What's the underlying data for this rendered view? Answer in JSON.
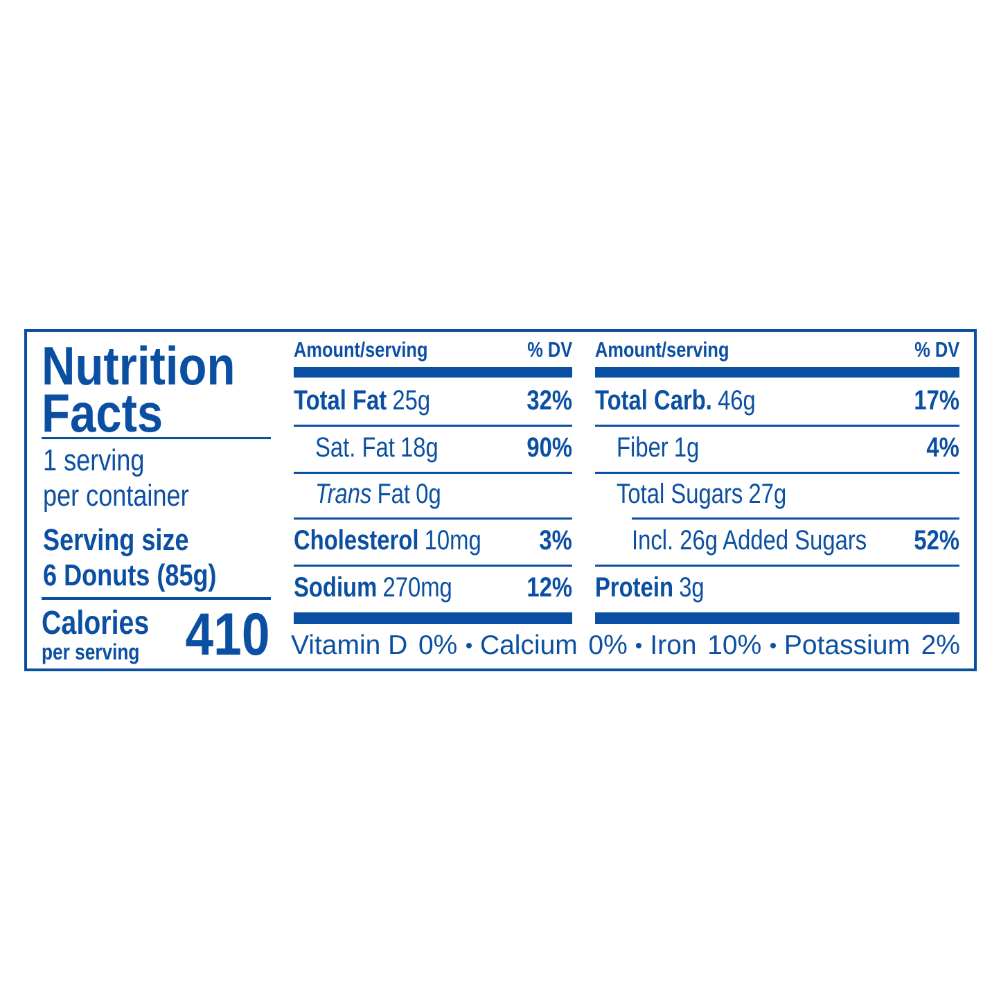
{
  "title": {
    "line1": "Nutrition",
    "line2": "Facts"
  },
  "servings": {
    "line1": "1 serving",
    "line2": "per container"
  },
  "serving_size": {
    "label": "Serving size",
    "value": "6 Donuts (85g)"
  },
  "calories": {
    "label": "Calories",
    "sublabel": "per serving",
    "value": 410
  },
  "columns": [
    {
      "header": {
        "amount": "Amount/serving",
        "dv": "% DV"
      },
      "rows": [
        {
          "name": "Total Fat",
          "amount": "25g",
          "dv": "32%",
          "bold": true,
          "indent": 0
        },
        {
          "name": "Sat. Fat",
          "amount": "18g",
          "dv": "90%",
          "bold": false,
          "indent": 1
        },
        {
          "prefix": "Trans",
          "name": "Fat",
          "amount": "0g",
          "bold": false,
          "indent": 1
        },
        {
          "name": "Cholesterol",
          "amount": "10mg",
          "dv": "3%",
          "bold": true,
          "indent": 0
        },
        {
          "name": "Sodium",
          "amount": "270mg",
          "dv": "12%",
          "bold": true,
          "indent": 0
        }
      ]
    },
    {
      "header": {
        "amount": "Amount/serving",
        "dv": "% DV"
      },
      "rows": [
        {
          "name": "Total Carb.",
          "amount": "46g",
          "dv": "17%",
          "bold": true,
          "indent": 0
        },
        {
          "name": "Fiber",
          "amount": "1g",
          "dv": "4%",
          "bold": false,
          "indent": 1
        },
        {
          "name": "Total Sugars",
          "amount": "27g",
          "bold": false,
          "indent": 1
        },
        {
          "name": "Incl. 26g Added Sugars",
          "dv": "52%",
          "bold": false,
          "indent": 2
        },
        {
          "name": "Protein",
          "amount": "3g",
          "bold": true,
          "indent": 0
        }
      ]
    }
  ],
  "vitamins": [
    {
      "name": "Vitamin D",
      "dv": "0%"
    },
    {
      "name": "Calcium",
      "dv": "0%"
    },
    {
      "name": "Iron",
      "dv": "10%"
    },
    {
      "name": "Potassium",
      "dv": "2%"
    }
  ]
}
